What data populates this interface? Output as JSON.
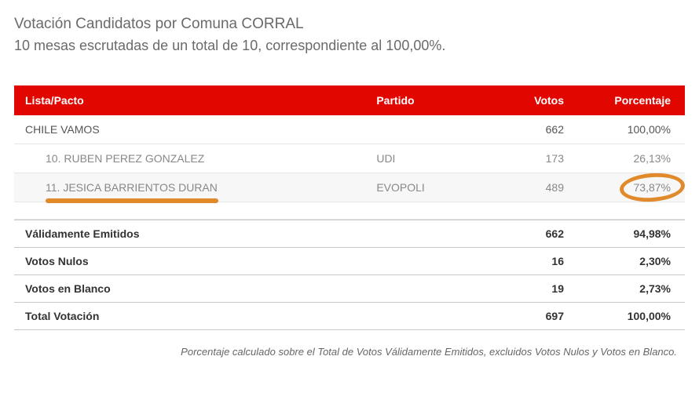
{
  "header": {
    "title": "Votación Candidatos por Comuna CORRAL",
    "subtitle": "10 mesas escrutadas de un total de 10, correspondiente al 100,00%."
  },
  "table": {
    "columns": {
      "lista": "Lista/Pacto",
      "partido": "Partido",
      "votos": "Votos",
      "porcentaje": "Porcentaje"
    },
    "coalition": {
      "name": "CHILE VAMOS",
      "partido": "",
      "votos": "662",
      "porcentaje": "100,00%"
    },
    "candidates": [
      {
        "name": "10. RUBEN PEREZ GONZALEZ",
        "partido": "UDI",
        "votos": "173",
        "porcentaje": "26,13%",
        "highlighted": false
      },
      {
        "name": "11. JESICA BARRIENTOS DURAN",
        "partido": "EVOPOLI",
        "votos": "489",
        "porcentaje": "73,87%",
        "highlighted": true
      }
    ]
  },
  "summary": {
    "rows": [
      {
        "label": "Válidamente Emitidos",
        "votos": "662",
        "porcentaje": "94,98%"
      },
      {
        "label": "Votos Nulos",
        "votos": "16",
        "porcentaje": "2,30%"
      },
      {
        "label": "Votos en Blanco",
        "votos": "19",
        "porcentaje": "2,73%"
      },
      {
        "label": "Total Votación",
        "votos": "697",
        "porcentaje": "100,00%"
      }
    ]
  },
  "footnote": "Porcentaje calculado sobre el Total de Votos Válidamente Emitidos, excluidos Votos Nulos y Votos en Blanco.",
  "annotations": {
    "underline_color": "#e08a2c",
    "circle_color": "#e08a2c"
  },
  "colors": {
    "header_bg": "#e10600",
    "header_text": "#ffffff",
    "body_text": "#555555",
    "muted_text": "#888888",
    "border": "#e6e6e6",
    "summary_border": "#c8c8c8"
  }
}
